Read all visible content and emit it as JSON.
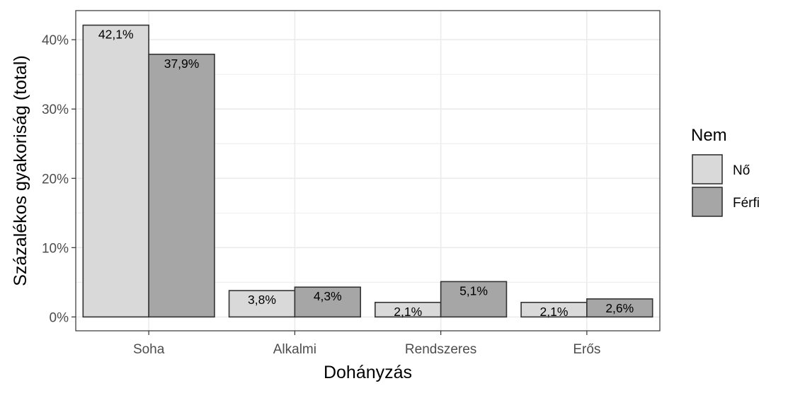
{
  "chart_data": {
    "type": "bar",
    "categories": [
      "Soha",
      "Alkalmi",
      "Rendszeres",
      "Erős"
    ],
    "series": [
      {
        "name": "Nő",
        "values": [
          42.1,
          3.8,
          2.1,
          2.1
        ],
        "labels": [
          "42,1%",
          "3,8%",
          "2,1%",
          "2,1%"
        ],
        "color": "#d9d9d9"
      },
      {
        "name": "Férfi",
        "values": [
          37.9,
          4.3,
          5.1,
          2.6
        ],
        "labels": [
          "37,9%",
          "4,3%",
          "5,1%",
          "2,6%"
        ],
        "color": "#a6a6a6"
      }
    ],
    "xlabel": "Dohányzás",
    "ylabel": "Százalékos gyakoriság (total)",
    "ylim": [
      -2,
      44.2
    ],
    "yticks": [
      0,
      10,
      20,
      30,
      40
    ],
    "ytick_labels": [
      "0%",
      "10%",
      "20%",
      "30%",
      "40%"
    ],
    "legend": {
      "title": "Nem",
      "position": "right"
    },
    "grid": true,
    "bar_outline_color": "#333333",
    "panel_border_color": "#333333",
    "grid_color": "#ebebeb"
  }
}
